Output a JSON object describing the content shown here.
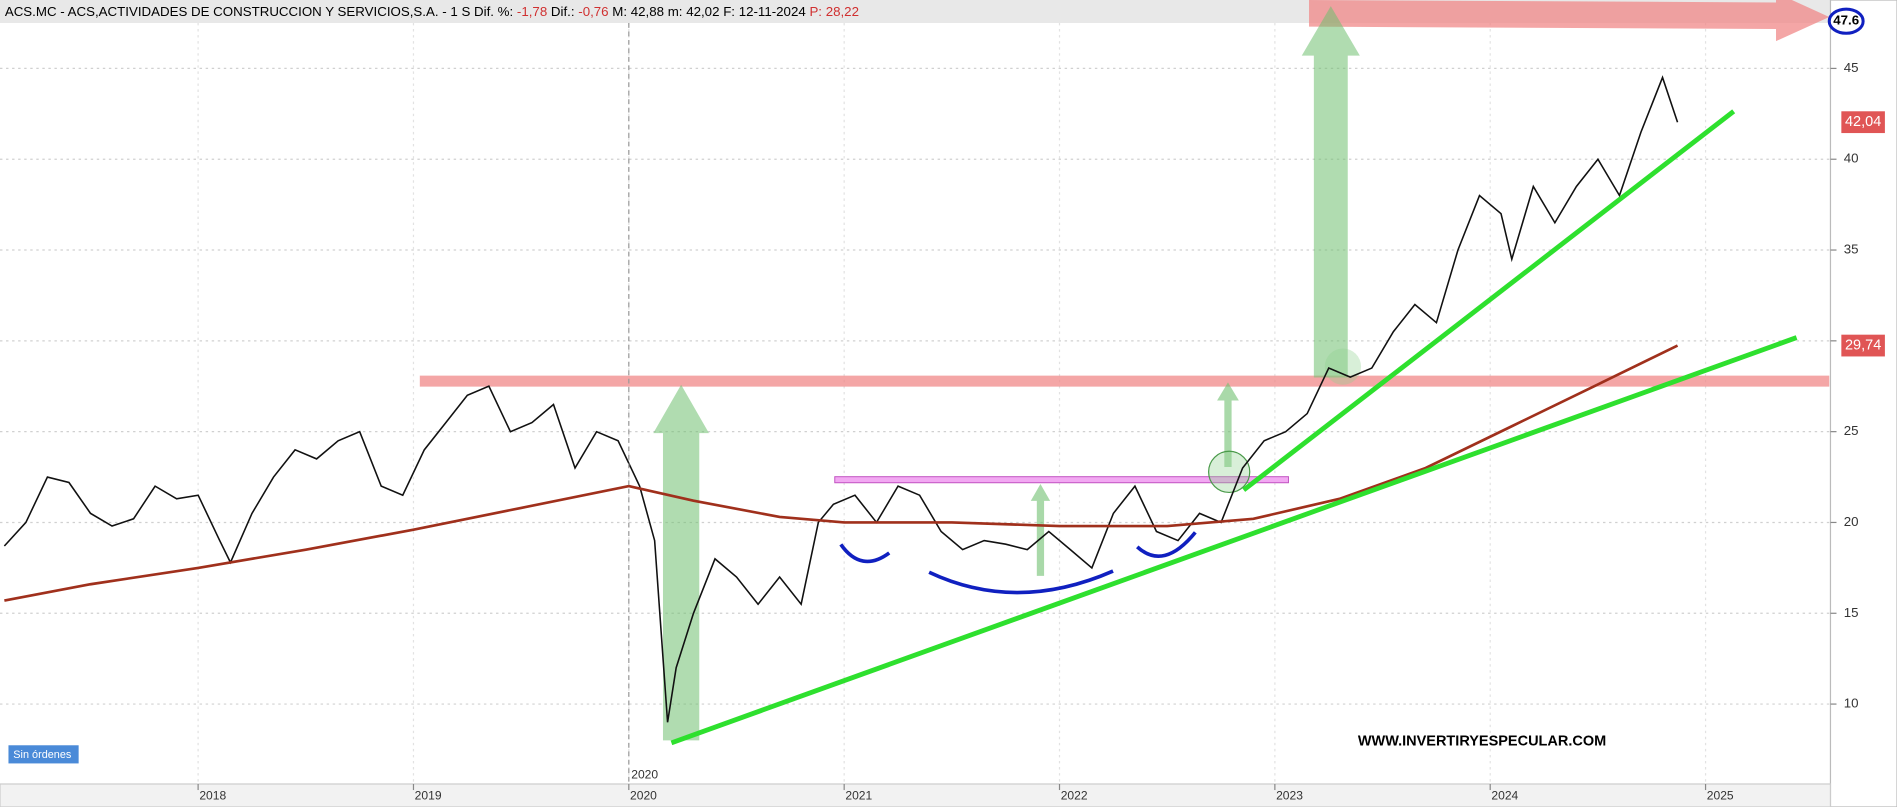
{
  "header": {
    "symbol": "ACS.MC - ACS,ACTIVIDADES DE CONSTRUCCION Y SERVICIOS,S.A. - 1 S",
    "dif_pct_label": "Dif. %:",
    "dif_pct": "-1,78",
    "dif_label": "Dif.:",
    "dif": "-0,76",
    "max": "M: 42,88",
    "min": "m: 42,02",
    "date": "F: 12-11-2024",
    "p": "P: 28,22"
  },
  "status": "Sin órdenes",
  "watermark": "WWW.INVERTIRYESPECULAR.COM",
  "chart_data": {
    "type": "line",
    "xlim": [
      2017.08,
      2025.58
    ],
    "xticks": [
      2018,
      2019,
      2020,
      2021,
      2022,
      2023,
      2024,
      2025
    ],
    "ylim": [
      5.6,
      47.5
    ],
    "yticks": [
      10,
      15,
      20,
      25,
      30,
      35,
      40,
      45
    ],
    "grid": true,
    "cursor_x": 2020,
    "series": [
      {
        "color": "#111111",
        "x": [
          2017.1,
          2017.2,
          2017.3,
          2017.4,
          2017.5,
          2017.6,
          2017.7,
          2017.8,
          2017.9,
          2018.0,
          2018.1,
          2018.15,
          2018.25,
          2018.35,
          2018.45,
          2018.55,
          2018.65,
          2018.75,
          2018.85,
          2018.95,
          2019.05,
          2019.15,
          2019.25,
          2019.35,
          2019.45,
          2019.55,
          2019.65,
          2019.75,
          2019.85,
          2019.95,
          2020.05,
          2020.12,
          2020.18,
          2020.22,
          2020.3,
          2020.4,
          2020.5,
          2020.6,
          2020.7,
          2020.8,
          2020.88,
          2020.95,
          2021.05,
          2021.15,
          2021.25,
          2021.35,
          2021.45,
          2021.55,
          2021.65,
          2021.75,
          2021.85,
          2021.95,
          2022.05,
          2022.15,
          2022.25,
          2022.35,
          2022.45,
          2022.55,
          2022.65,
          2022.75,
          2022.85,
          2022.95,
          2023.05,
          2023.15,
          2023.25,
          2023.35,
          2023.45,
          2023.55,
          2023.65,
          2023.75,
          2023.85,
          2023.95,
          2024.05,
          2024.1,
          2024.2,
          2024.3,
          2024.4,
          2024.5,
          2024.6,
          2024.7,
          2024.8,
          2024.87
        ],
        "values": [
          18.7,
          20,
          22.5,
          22.2,
          20.5,
          19.8,
          20.2,
          22,
          21.3,
          21.5,
          19,
          17.8,
          20.5,
          22.5,
          24,
          23.5,
          24.5,
          25,
          22,
          21.5,
          24,
          25.5,
          27,
          27.5,
          25,
          25.5,
          26.5,
          23,
          25,
          24.5,
          22,
          19,
          9,
          12,
          15,
          18,
          17,
          15.5,
          17,
          15.5,
          20,
          21,
          21.5,
          20,
          22,
          21.5,
          19.5,
          18.5,
          19,
          18.8,
          18.5,
          19.5,
          18.5,
          17.5,
          20.5,
          22,
          19.5,
          19,
          20.5,
          20,
          23,
          24.5,
          25,
          26,
          28.5,
          28,
          28.5,
          30.5,
          32,
          31,
          35,
          38,
          37,
          34.5,
          38.5,
          36.5,
          38.5,
          40,
          38,
          41.5,
          44.5,
          42.04
        ]
      },
      {
        "color": "#a0301c",
        "x": [
          2017.1,
          2017.5,
          2018.0,
          2018.5,
          2019.0,
          2019.5,
          2020.0,
          2020.3,
          2020.7,
          2021.0,
          2021.5,
          2022.0,
          2022.5,
          2022.9,
          2023.3,
          2023.7,
          2024.1,
          2024.5,
          2024.87
        ],
        "values": [
          15.7,
          16.6,
          17.5,
          18.5,
          19.6,
          20.8,
          22,
          21.2,
          20.3,
          20,
          20,
          19.8,
          19.8,
          20.2,
          21.3,
          23,
          25.3,
          27.6,
          29.74
        ]
      }
    ],
    "price_markers": [
      {
        "value": 42.04,
        "label": "42,04",
        "color": "#e05555"
      },
      {
        "value": 29.74,
        "label": "29,74",
        "color": "#e05555"
      }
    ],
    "target": 47.6
  }
}
